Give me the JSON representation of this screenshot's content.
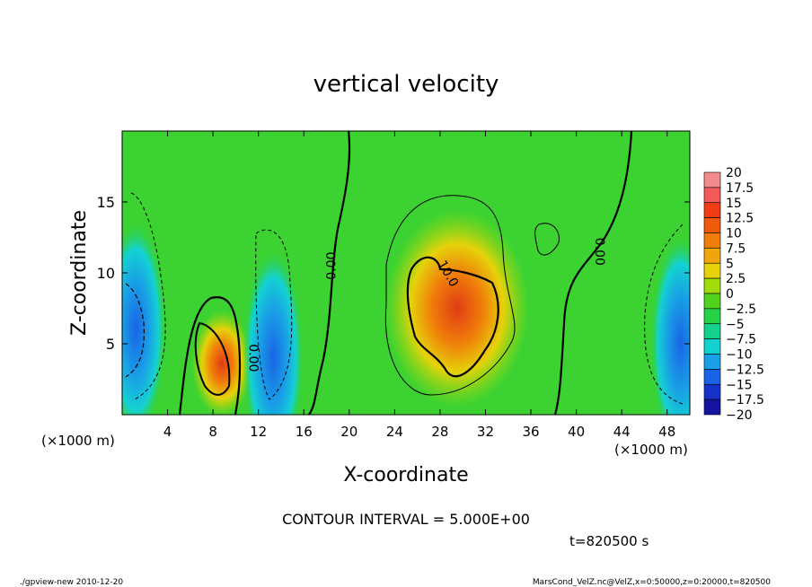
{
  "chart_data": {
    "type": "heatmap",
    "title": "vertical velocity",
    "xlabel": "X-coordinate",
    "ylabel": "Z-coordinate",
    "x_unit_left": "(×1000 m)",
    "x_unit_right": "(×1000 m)",
    "xlim": [
      0,
      50
    ],
    "ylim": [
      0,
      20
    ],
    "x_ticks": [
      4,
      8,
      12,
      16,
      20,
      24,
      28,
      32,
      36,
      40,
      44,
      48
    ],
    "y_ticks": [
      5,
      10,
      15
    ],
    "contour_interval_text": "CONTOUR INTERVAL = 5.000E+00",
    "contour_labels": [
      "0.00",
      "0.00",
      "0.00",
      "10.0"
    ],
    "time_text": "t=820500 s",
    "colorbar_ticks": [
      "20",
      "17.5",
      "15",
      "12.5",
      "10",
      "7.5",
      "5",
      "2.5",
      "0",
      "−2.5",
      "−5",
      "−7.5",
      "−10",
      "−12.5",
      "−15",
      "−17.5",
      "−20"
    ],
    "colorbar_colors": [
      "#f28c8c",
      "#f25a5a",
      "#f03c14",
      "#f05a0a",
      "#f07d0a",
      "#f0a50a",
      "#e6d20a",
      "#a0dc0a",
      "#50d21e",
      "#28d246",
      "#14d28c",
      "#14d2d2",
      "#19a0e6",
      "#1964e6",
      "#1432c8",
      "#1414a0",
      "#5a1496"
    ],
    "features": [
      {
        "kind": "updraft",
        "center_x": 8.8,
        "center_z": 3.6,
        "max_w": 12.5
      },
      {
        "kind": "updraft",
        "center_x": 29.5,
        "center_z": 7.5,
        "max_w": 12.5
      },
      {
        "kind": "downdraft",
        "center_x": 1.2,
        "center_z": 6.0,
        "min_w": -10
      },
      {
        "kind": "downdraft",
        "center_x": 13.3,
        "center_z": 4.0,
        "min_w": -7.5
      },
      {
        "kind": "downdraft",
        "center_x": 49.2,
        "center_z": 5.0,
        "min_w": -10
      }
    ]
  },
  "footer": {
    "left": "./gpview-new   2010-12-20",
    "right": "MarsCond_VelZ.nc@VelZ,x=0:50000,z=0:20000,t=820500"
  }
}
